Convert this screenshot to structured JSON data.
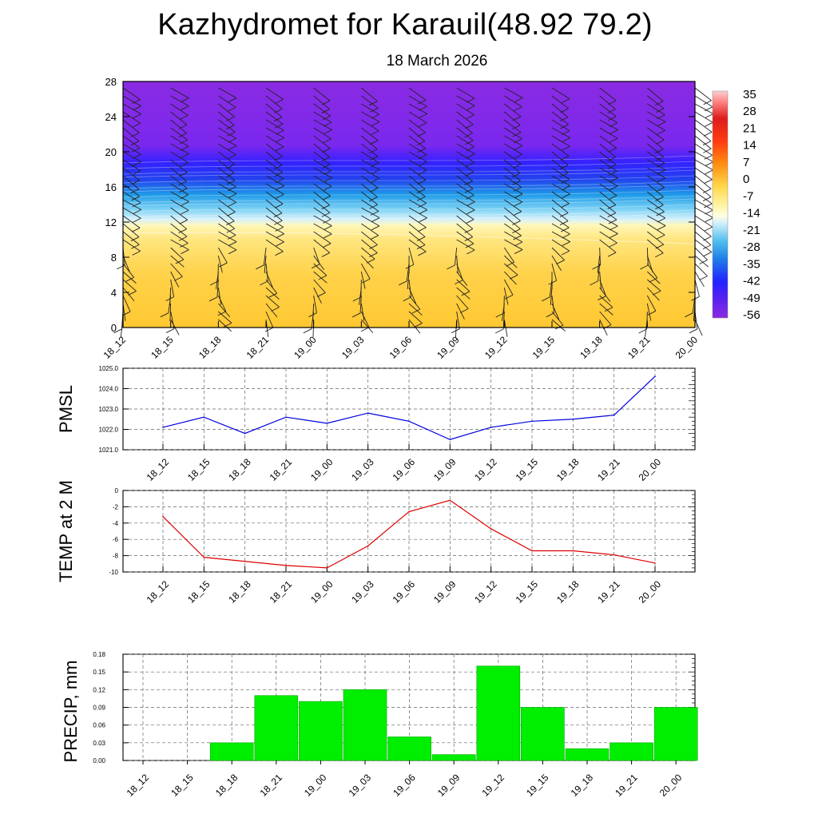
{
  "title": "Kazhydromet for Karauil(48.92 79.2)",
  "subtitle": "18 March 2026",
  "colors": {
    "pmsl_line": "#0000dd",
    "temp_line": "#dd0000",
    "precip_bar": "#00ee00"
  },
  "chart_data": [
    {
      "type": "heatmap",
      "name": "vertical-cross-section",
      "x": [
        "18_12",
        "18_15",
        "18_18",
        "18_21",
        "19_00",
        "19_03",
        "19_06",
        "19_09",
        "19_12",
        "19_15",
        "19_18",
        "19_21",
        "20_00"
      ],
      "y_ticks": [
        0,
        4,
        8,
        12,
        16,
        20,
        24,
        28
      ],
      "ylim": [
        0,
        28
      ],
      "colorbar": {
        "labels": [
          "35",
          "28",
          "21",
          "14",
          "7",
          "0",
          "-7",
          "-14",
          "-21",
          "-28",
          "-35",
          "-42",
          "-49",
          "-56"
        ]
      },
      "overlay": "wind barbs"
    },
    {
      "type": "line",
      "name": "pmsl",
      "ylabel": "PMSL",
      "x": [
        "18_12",
        "18_15",
        "18_18",
        "18_21",
        "19_00",
        "19_03",
        "19_06",
        "19_09",
        "19_12",
        "19_15",
        "19_18",
        "19_21",
        "20_00"
      ],
      "values": [
        1022.1,
        1022.6,
        1021.8,
        1022.6,
        1022.3,
        1022.8,
        1022.4,
        1021.5,
        1022.1,
        1022.4,
        1022.5,
        1022.7,
        1024.6
      ],
      "y_ticks": [
        "1021.0",
        "1022.0",
        "1023.0",
        "1024.0",
        "1025.0"
      ],
      "ylim": [
        1021,
        1025
      ],
      "grid": true
    },
    {
      "type": "line",
      "name": "temp",
      "ylabel": "TEMP at 2 M",
      "x": [
        "18_12",
        "18_15",
        "18_18",
        "18_21",
        "19_00",
        "19_03",
        "19_06",
        "19_09",
        "19_12",
        "19_15",
        "19_18",
        "19_21",
        "20_00"
      ],
      "values": [
        -3.2,
        -8.2,
        -8.7,
        -9.2,
        -9.5,
        -6.8,
        -2.6,
        -1.2,
        -4.7,
        -7.4,
        -7.4,
        -7.9,
        -8.9
      ],
      "y_ticks": [
        "-10",
        "-8",
        "-6",
        "-4",
        "-2",
        "0"
      ],
      "ylim": [
        -10,
        0
      ],
      "grid": true
    },
    {
      "type": "bar",
      "name": "precip",
      "ylabel": "PRECIP, mm",
      "categories": [
        "18_12",
        "18_15",
        "18_18",
        "18_21",
        "19_00",
        "19_03",
        "19_06",
        "19_09",
        "19_12",
        "19_15",
        "19_18",
        "19_21",
        "20_00"
      ],
      "values": [
        0,
        0,
        0.03,
        0.11,
        0.1,
        0.12,
        0.04,
        0.01,
        0.16,
        0.09,
        0.02,
        0.03,
        0.09
      ],
      "y_ticks": [
        "0.00",
        "0.03",
        "0.06",
        "0.09",
        "0.12",
        "0.15",
        "0.18"
      ],
      "ylim": [
        0,
        0.18
      ],
      "grid": true
    }
  ]
}
